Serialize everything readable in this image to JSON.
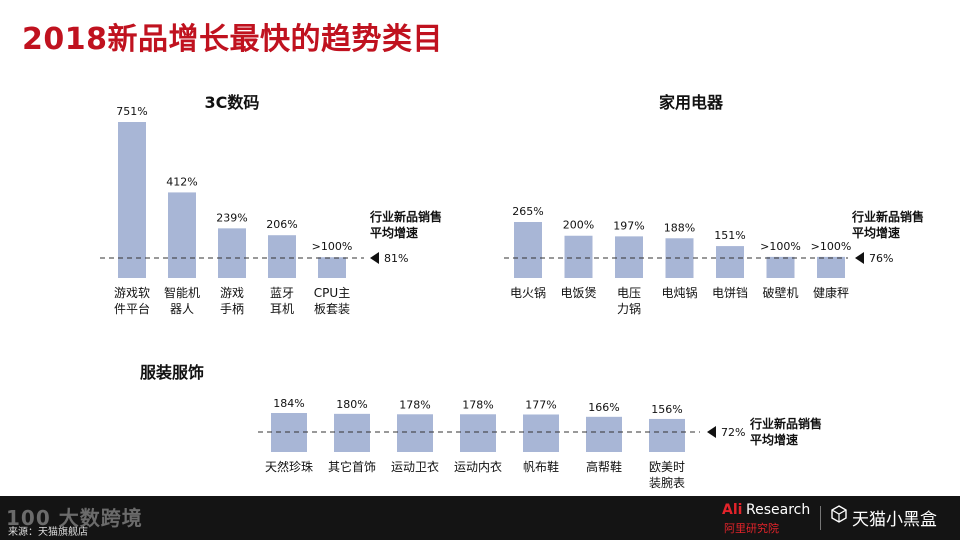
{
  "page": {
    "title": "2018新品增长最快的趋势类目"
  },
  "footer": {
    "source": "来源：天猫旗舰店",
    "watermark": "100 大数跨境",
    "research_brand_a": "Ali",
    "research_brand_b": "Research",
    "research_sub": "阿里研究院",
    "tmall": "天猫小黑盒",
    "icon": "tmall-cube-icon"
  },
  "colors": {
    "title": "#c0121f",
    "bar": "#a8b6d6",
    "reference_line": "#333333",
    "marker": "#111111",
    "footer_bg": "#141414",
    "brand_red": "#e2232a"
  },
  "chart_data": [
    {
      "type": "bar",
      "title": "3C数码",
      "categories": [
        "游戏软件平台",
        "智能机器人",
        "游戏手柄",
        "蓝牙耳机",
        "CPU主板套装"
      ],
      "category_labels": [
        [
          "游戏软",
          "件平台"
        ],
        [
          "智能机",
          "器人"
        ],
        [
          "游戏",
          "手柄"
        ],
        [
          "蓝牙",
          "耳机"
        ],
        [
          "CPU主",
          "板套装"
        ]
      ],
      "values": [
        751,
        412,
        239,
        206,
        100
      ],
      "value_labels": [
        "751%",
        "412%",
        "239%",
        "206%",
        ">100%"
      ],
      "value_unit": "%",
      "reference": {
        "value": 81,
        "label": "81%",
        "legend": [
          "行业新品销售",
          "平均增速"
        ]
      },
      "legend": "right",
      "grid": false
    },
    {
      "type": "bar",
      "title": "家用电器",
      "categories": [
        "电火锅",
        "电饭煲",
        "电压力锅",
        "电炖锅",
        "电饼铛",
        "破壁机",
        "健康秤"
      ],
      "category_labels": [
        [
          "电火锅"
        ],
        [
          "电饭煲"
        ],
        [
          "电压",
          "力锅"
        ],
        [
          "电炖锅"
        ],
        [
          "电饼铛"
        ],
        [
          "破壁机"
        ],
        [
          "健康秤"
        ]
      ],
      "values": [
        265,
        200,
        197,
        188,
        151,
        100,
        100
      ],
      "value_labels": [
        "265%",
        "200%",
        "197%",
        "188%",
        "151%",
        ">100%",
        ">100%"
      ],
      "value_unit": "%",
      "reference": {
        "value": 76,
        "label": "76%",
        "legend": [
          "行业新品销售",
          "平均增速"
        ]
      },
      "legend": "right",
      "grid": false
    },
    {
      "type": "bar",
      "title": "服装服饰",
      "categories": [
        "天然珍珠",
        "其它首饰",
        "运动卫衣",
        "运动内衣",
        "帆布鞋",
        "高帮鞋",
        "欧美时装腕表"
      ],
      "category_labels": [
        [
          "天然珍珠"
        ],
        [
          "其它首饰"
        ],
        [
          "运动卫衣"
        ],
        [
          "运动内衣"
        ],
        [
          "帆布鞋"
        ],
        [
          "高帮鞋"
        ],
        [
          "欧美时",
          "装腕表"
        ]
      ],
      "values": [
        184,
        180,
        178,
        178,
        177,
        166,
        156
      ],
      "value_labels": [
        "184%",
        "180%",
        "178%",
        "178%",
        "177%",
        "166%",
        "156%"
      ],
      "value_unit": "%",
      "reference": {
        "value": 72,
        "label": "72%",
        "legend": [
          "行业新品销售",
          "平均增速"
        ]
      },
      "legend": "right",
      "grid": false
    }
  ]
}
